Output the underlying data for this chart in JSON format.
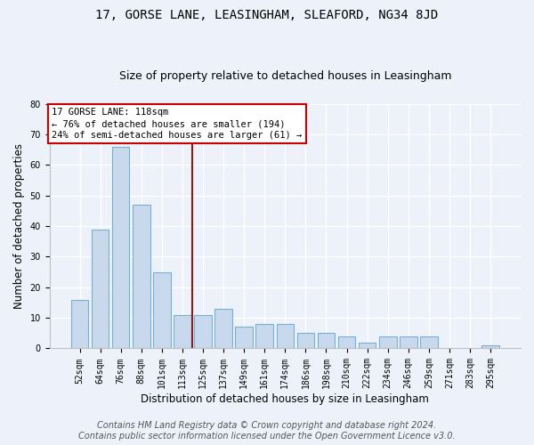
{
  "title": "17, GORSE LANE, LEASINGHAM, SLEAFORD, NG34 8JD",
  "subtitle": "Size of property relative to detached houses in Leasingham",
  "xlabel": "Distribution of detached houses by size in Leasingham",
  "ylabel": "Number of detached properties",
  "categories": [
    "52sqm",
    "64sqm",
    "76sqm",
    "88sqm",
    "101sqm",
    "113sqm",
    "125sqm",
    "137sqm",
    "149sqm",
    "161sqm",
    "174sqm",
    "186sqm",
    "198sqm",
    "210sqm",
    "222sqm",
    "234sqm",
    "246sqm",
    "259sqm",
    "271sqm",
    "283sqm",
    "295sqm"
  ],
  "values": [
    16,
    39,
    66,
    47,
    25,
    11,
    11,
    13,
    7,
    8,
    8,
    5,
    5,
    4,
    2,
    4,
    4,
    4,
    0,
    0,
    1
  ],
  "bar_color": "#c8d9ee",
  "bar_edge_color": "#7aafd4",
  "vline_x": 5.5,
  "vline_color": "#8b1a1a",
  "annotation_line1": "17 GORSE LANE: 118sqm",
  "annotation_line2": "← 76% of detached houses are smaller (194)",
  "annotation_line3": "24% of semi-detached houses are larger (61) →",
  "annotation_box_bg": "#ffffff",
  "annotation_box_edge": "#cc0000",
  "ylim": [
    0,
    80
  ],
  "yticks": [
    0,
    10,
    20,
    30,
    40,
    50,
    60,
    70,
    80
  ],
  "footer_line1": "Contains HM Land Registry data © Crown copyright and database right 2024.",
  "footer_line2": "Contains public sector information licensed under the Open Government Licence v3.0.",
  "bg_color": "#edf2fa",
  "grid_color": "#ffffff",
  "title_fontsize": 10,
  "subtitle_fontsize": 9,
  "tick_fontsize": 7,
  "ylabel_fontsize": 8.5,
  "xlabel_fontsize": 8.5,
  "footer_fontsize": 7,
  "annot_fontsize": 7.5
}
